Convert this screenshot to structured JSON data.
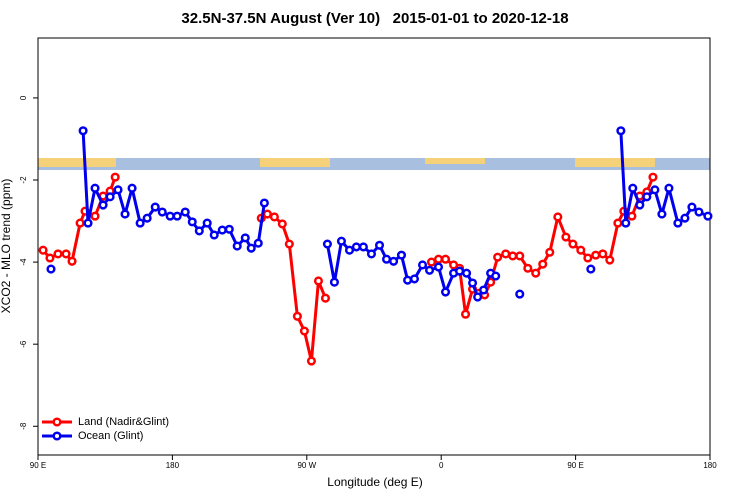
{
  "chart_data": {
    "type": "line",
    "title": "32.5N-37.5N August (Ver 10)   2015-01-01 to 2020-12-18",
    "xlabel": "Longitude (deg E)",
    "ylabel": "XCO2 - MLO trend (ppm)",
    "xlim": [
      90,
      540
    ],
    "ylim": [
      -8.7,
      1.46
    ],
    "xticks": [
      {
        "value": 90,
        "label": "90 E"
      },
      180,
      {
        "value": 270,
        "label": "90 W"
      },
      {
        "value": 360,
        "label": "0"
      },
      {
        "value": 450,
        "label": "90 E"
      },
      {
        "value": 540,
        "label": "180"
      }
    ],
    "yticks": [
      0,
      -2,
      -4,
      -6,
      -8
    ],
    "legend": "bottom-left",
    "series": [
      {
        "name": "Land (Nadir&Glint)",
        "color": "#ff0000",
        "x": [
          93.4,
          98.0,
          103.4,
          108.8,
          112.8,
          118.2,
          121.5,
          128.2,
          133.6,
          138.3,
          141.7,
          null,
          239.5,
          243.6,
          248.3,
          253.6,
          258.3,
          263.7,
          268.4,
          273.1,
          277.8,
          282.5,
          null,
          353.5,
          358.2,
          362.9,
          368.3,
          372.3,
          376.3,
          381.0,
          385.1,
          389.1,
          393.1,
          397.8,
          403.2,
          407.9,
          412.6,
          418.0,
          423.3,
          428.0,
          432.7,
          438.1,
          443.5,
          448.2,
          453.5,
          458.2,
          463.5,
          468.2,
          472.9,
          478.3,
          482.3,
          487.7,
          493.0,
          497.7,
          501.8
        ],
        "values": [
          -3.71,
          -3.9,
          -3.8,
          -3.8,
          -3.98,
          -3.05,
          -2.76,
          -2.88,
          -2.39,
          -2.27,
          -1.93,
          null,
          -2.93,
          -2.83,
          -2.9,
          -3.07,
          -3.56,
          -5.32,
          -5.68,
          -6.41,
          -4.46,
          -4.88,
          null,
          -4.0,
          -3.93,
          -3.93,
          -4.07,
          -4.15,
          -5.27,
          -4.66,
          -4.76,
          -4.8,
          -4.49,
          -3.88,
          -3.8,
          -3.85,
          -3.85,
          -4.15,
          -4.27,
          -4.05,
          -3.76,
          -2.9,
          -3.39,
          -3.56,
          -3.71,
          -3.9,
          -3.83,
          -3.8,
          -3.95,
          -3.05,
          -2.76,
          -2.88,
          -2.39,
          -2.29,
          -1.93
        ]
      },
      {
        "name": "Ocean (Glint)",
        "color": "#0000ee",
        "x": [
          98.7,
          null,
          120.2,
          123.5,
          128.2,
          133.6,
          138.3,
          143.6,
          148.3,
          153.0,
          158.4,
          163.1,
          168.5,
          173.2,
          178.5,
          183.2,
          188.6,
          193.3,
          198.0,
          203.3,
          208.0,
          213.4,
          218.1,
          223.4,
          228.8,
          232.8,
          237.5,
          241.6,
          null,
          283.8,
          288.5,
          293.2,
          298.6,
          303.2,
          307.9,
          313.3,
          318.7,
          323.4,
          328.1,
          333.4,
          337.5,
          342.1,
          347.5,
          352.2,
          358.2,
          362.9,
          368.3,
          372.3,
          377.0,
          381.0,
          384.4,
          388.4,
          393.1,
          396.5,
          null,
          412.6,
          null,
          460.2,
          null,
          480.3,
          483.6,
          488.3,
          493.0,
          497.7,
          503.1,
          507.8,
          512.5,
          518.5,
          523.2,
          527.9,
          532.6,
          538.6
        ],
        "values": [
          -4.17,
          null,
          -0.8,
          -3.05,
          -2.2,
          -2.61,
          -2.41,
          -2.24,
          -2.83,
          -2.2,
          -3.05,
          -2.93,
          -2.66,
          -2.78,
          -2.88,
          -2.88,
          -2.78,
          -3.02,
          -3.24,
          -3.05,
          -3.34,
          -3.22,
          -3.2,
          -3.61,
          -3.41,
          -3.66,
          -3.54,
          -2.56,
          null,
          -3.56,
          -4.49,
          -3.49,
          -3.71,
          -3.63,
          -3.63,
          -3.8,
          -3.59,
          -3.93,
          -3.98,
          -3.83,
          -4.44,
          -4.41,
          -4.07,
          -4.2,
          -4.12,
          -4.73,
          -4.27,
          -4.22,
          -4.27,
          -4.51,
          -4.85,
          -4.68,
          -4.27,
          -4.34,
          null,
          -4.78,
          null,
          -4.17,
          null,
          -0.8,
          -3.05,
          -2.2,
          -2.61,
          -2.41,
          -2.24,
          -2.83,
          -2.2,
          -3.05,
          -2.93,
          -2.66,
          -2.78,
          -2.88
        ]
      }
    ]
  }
}
